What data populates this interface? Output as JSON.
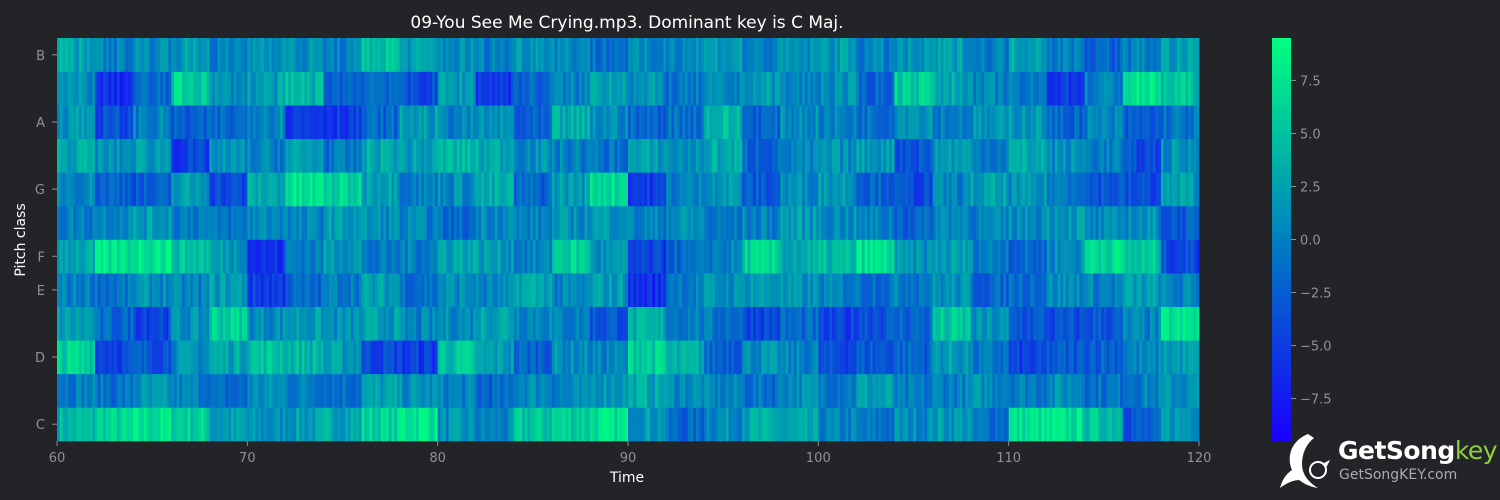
{
  "chart_data": {
    "type": "heatmap",
    "title": "09-You See Me Crying.mp3. Dominant key is C Maj.",
    "xlabel": "Time",
    "ylabel": "Pitch class",
    "xlim": [
      60,
      120
    ],
    "x_ticks": [
      "60",
      "70",
      "80",
      "90",
      "100",
      "110",
      "120"
    ],
    "y_tick_labels": [
      "C",
      "D",
      "E",
      "F",
      "G",
      "A",
      "B"
    ],
    "pitch_rows": [
      "C",
      "C#",
      "D",
      "D#",
      "E",
      "F",
      "F#",
      "G",
      "G#",
      "A",
      "A#",
      "B"
    ],
    "colorbar": {
      "range": [
        -9.5,
        9.5
      ],
      "ticks": [
        "7.5",
        "5.0",
        "2.5",
        "0.0",
        "−2.5",
        "−5.0",
        "−7.5"
      ],
      "colors": [
        "#1a00ff",
        "#0080c0",
        "#00ff80"
      ]
    },
    "time_bins": [
      "60-62",
      "62-64",
      "64-66",
      "66-68",
      "68-70",
      "70-72",
      "72-74",
      "74-76",
      "76-78",
      "78-80",
      "80-82",
      "82-84",
      "84-86",
      "86-88",
      "88-90",
      "90-92",
      "92-94",
      "94-96",
      "96-98",
      "98-100",
      "100-102",
      "102-104",
      "104-106",
      "106-108",
      "108-110",
      "110-112",
      "112-114",
      "114-116",
      "116-118",
      "118-120"
    ],
    "values": [
      [
        4,
        6,
        7,
        6,
        2,
        1,
        2,
        3,
        6,
        8,
        1,
        0,
        5,
        6,
        7,
        2,
        -2,
        1,
        3,
        2,
        0,
        -1,
        1,
        2,
        -1,
        7,
        7,
        5,
        -3,
        2
      ],
      [
        0,
        -1,
        1,
        0,
        -2,
        1,
        0,
        -1,
        2,
        1,
        0,
        -2,
        1,
        0,
        2,
        3,
        1,
        0,
        -1,
        1,
        0,
        2,
        -1,
        0,
        1,
        0,
        1,
        -1,
        0,
        1
      ],
      [
        6,
        -4,
        -3,
        1,
        3,
        5,
        4,
        2,
        -4,
        -5,
        5,
        2,
        -2,
        1,
        0,
        6,
        3,
        -2,
        1,
        0,
        -4,
        -3,
        -2,
        2,
        -1,
        -5,
        -3,
        -2,
        0,
        2
      ],
      [
        2,
        -2,
        -4,
        1,
        6,
        1,
        2,
        1,
        2,
        0,
        1,
        3,
        1,
        0,
        -3,
        3,
        0,
        -1,
        -4,
        -2,
        -5,
        -3,
        -2,
        5,
        1,
        -3,
        -4,
        -3,
        0,
        7
      ],
      [
        0,
        -1,
        1,
        0,
        2,
        -5,
        -2,
        0,
        2,
        -1,
        1,
        0,
        3,
        0,
        2,
        -6,
        0,
        1,
        2,
        1,
        0,
        -1,
        0,
        1,
        -2,
        -1,
        1,
        0,
        2,
        0
      ],
      [
        3,
        7,
        8,
        5,
        2,
        -6,
        0,
        2,
        -1,
        0,
        3,
        2,
        0,
        6,
        1,
        -5,
        -2,
        0,
        6,
        3,
        4,
        7,
        1,
        2,
        0,
        -2,
        1,
        7,
        5,
        -4
      ],
      [
        0,
        1,
        2,
        0,
        -1,
        1,
        0,
        2,
        1,
        0,
        -2,
        1,
        0,
        1,
        2,
        0,
        1,
        -1,
        0,
        2,
        1,
        0,
        -2,
        1,
        0,
        1,
        2,
        0,
        1,
        -3
      ],
      [
        1,
        -2,
        -3,
        2,
        -4,
        3,
        7,
        6,
        3,
        0,
        1,
        3,
        -2,
        2,
        7,
        -5,
        0,
        2,
        -3,
        1,
        2,
        -2,
        -4,
        0,
        2,
        1,
        0,
        -3,
        -4,
        2
      ],
      [
        3,
        1,
        2,
        -5,
        1,
        0,
        2,
        -1,
        3,
        2,
        4,
        3,
        1,
        0,
        -1,
        2,
        1,
        3,
        -2,
        0,
        1,
        2,
        -3,
        2,
        0,
        3,
        1,
        0,
        -4,
        1
      ],
      [
        2,
        -4,
        0,
        -3,
        -2,
        1,
        -5,
        -5,
        -2,
        2,
        0,
        1,
        -3,
        3,
        1,
        -2,
        -1,
        4,
        -2,
        1,
        0,
        -1,
        2,
        0,
        1,
        2,
        -2,
        0,
        -3,
        -1
      ],
      [
        1,
        -6,
        -2,
        6,
        1,
        2,
        4,
        -2,
        -1,
        -4,
        2,
        -5,
        -2,
        0,
        3,
        1,
        -1,
        0,
        2,
        0,
        1,
        -2,
        6,
        3,
        0,
        -1,
        -5,
        0,
        7,
        5
      ],
      [
        3,
        0,
        1,
        2,
        0,
        2,
        1,
        0,
        5,
        2,
        1,
        0,
        2,
        1,
        -1,
        0,
        1,
        2,
        0,
        1,
        2,
        0,
        1,
        2,
        0,
        3,
        0,
        -2,
        0,
        2
      ]
    ]
  },
  "watermark": {
    "name_main": "GetSong",
    "name_accent": "key",
    "url": "GetSongKEY.com",
    "accent_color": "#8fcf3c"
  }
}
